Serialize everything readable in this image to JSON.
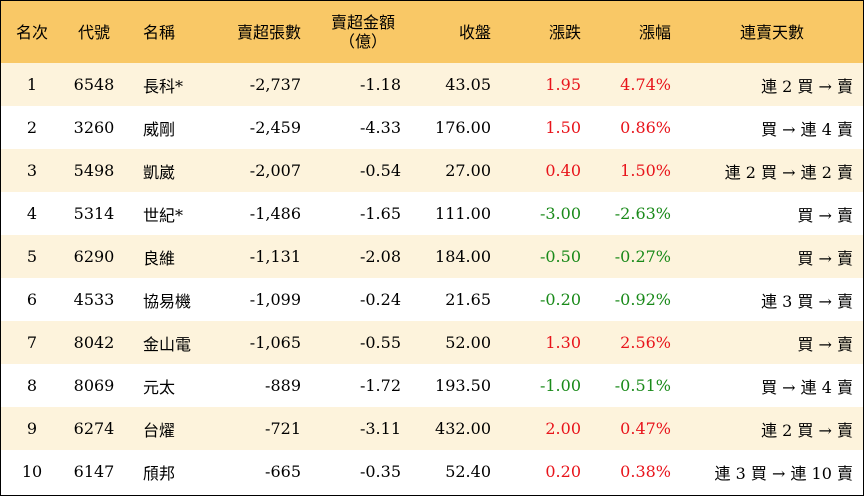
{
  "table": {
    "header": [
      "名次",
      "代號",
      "名稱",
      "賣超張數",
      [
        "賣超金額",
        "（億）"
      ],
      "收盤",
      "漲跌",
      "漲幅",
      "連賣天數"
    ],
    "rows": [
      [
        "1",
        "6548",
        "長科*",
        "-2,737",
        "-1.18",
        "43.05",
        "1.95",
        "4.74%",
        "連 2 買 → 賣"
      ],
      [
        "2",
        "3260",
        "威剛",
        "-2,459",
        "-4.33",
        "176.00",
        "1.50",
        "0.86%",
        "買 → 連 4 賣"
      ],
      [
        "3",
        "5498",
        "凱崴",
        "-2,007",
        "-0.54",
        "27.00",
        "0.40",
        "1.50%",
        "連 2 買 → 連 2 賣"
      ],
      [
        "4",
        "5314",
        "世紀*",
        "-1,486",
        "-1.65",
        "111.00",
        "-3.00",
        "-2.63%",
        "買 → 賣"
      ],
      [
        "5",
        "6290",
        "良維",
        "-1,131",
        "-2.08",
        "184.00",
        "-0.50",
        "-0.27%",
        "買 → 賣"
      ],
      [
        "6",
        "4533",
        "協易機",
        "-1,099",
        "-0.24",
        "21.65",
        "-0.20",
        "-0.92%",
        "連 3 買 → 賣"
      ],
      [
        "7",
        "8042",
        "金山電",
        "-1,065",
        "-0.55",
        "52.00",
        "1.30",
        "2.56%",
        "買 → 賣"
      ],
      [
        "8",
        "8069",
        "元太",
        "-889",
        "-1.72",
        "193.50",
        "-1.00",
        "-0.51%",
        "買 → 連 4 賣"
      ],
      [
        "9",
        "6274",
        "台燿",
        "-721",
        "-3.11",
        "432.00",
        "2.00",
        "0.47%",
        "連 2 買 → 賣"
      ],
      [
        "10",
        "6147",
        "頎邦",
        "-665",
        "-0.35",
        "52.40",
        "0.20",
        "0.38%",
        "連 3 買 → 連 10 賣"
      ]
    ],
    "colors": {
      "header": "#f9c866",
      "odd_row": "#fdf3dc",
      "even_row": "#ffffff",
      "up": "#e8141b",
      "down": "#1a8a1a"
    }
  }
}
